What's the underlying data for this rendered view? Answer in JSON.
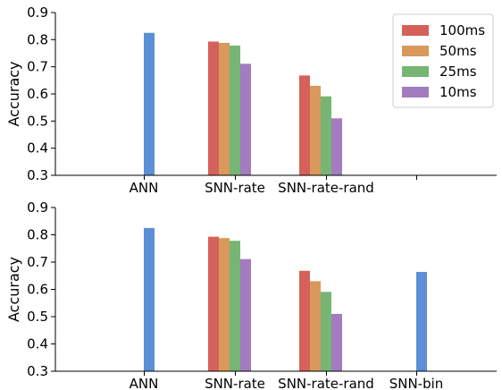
{
  "chart_data": [
    {
      "type": "bar",
      "title": "",
      "xlabel": "",
      "ylabel": "Accuracy",
      "ylim": [
        0.3,
        0.9
      ],
      "yticks": [
        "0.3",
        "0.4",
        "0.5",
        "0.6",
        "0.7",
        "0.8",
        "0.9"
      ],
      "categories": [
        "ANN",
        "SNN-rate",
        "SNN-rate-rand"
      ],
      "legend": {
        "placement": "top-right"
      },
      "series": [
        {
          "name": "ANN",
          "color": "#5b8fd6",
          "values": [
            0.825,
            null,
            null
          ]
        },
        {
          "name": "100ms",
          "color": "#d5625a",
          "values": [
            null,
            0.793,
            0.668
          ]
        },
        {
          "name": "50ms",
          "color": "#d9995a",
          "values": [
            null,
            0.788,
            0.63
          ]
        },
        {
          "name": "25ms",
          "color": "#76b573",
          "values": [
            null,
            0.778,
            0.591
          ]
        },
        {
          "name": "10ms",
          "color": "#a27cbf",
          "values": [
            null,
            0.711,
            0.51
          ]
        }
      ]
    },
    {
      "type": "bar",
      "title": "",
      "xlabel": "",
      "ylabel": "Accuracy",
      "ylim": [
        0.3,
        0.9
      ],
      "yticks": [
        "0.3",
        "0.4",
        "0.5",
        "0.6",
        "0.7",
        "0.8",
        "0.9"
      ],
      "categories": [
        "ANN",
        "SNN-rate",
        "SNN-rate-rand",
        "SNN-bin"
      ],
      "series": [
        {
          "name": "ANN",
          "color": "#5b8fd6",
          "values": [
            0.825,
            null,
            null,
            0.664
          ]
        },
        {
          "name": "100ms",
          "color": "#d5625a",
          "values": [
            null,
            0.793,
            0.668,
            null
          ]
        },
        {
          "name": "50ms",
          "color": "#d9995a",
          "values": [
            null,
            0.788,
            0.63,
            null
          ]
        },
        {
          "name": "25ms",
          "color": "#76b573",
          "values": [
            null,
            0.778,
            0.591,
            null
          ]
        },
        {
          "name": "10ms",
          "color": "#a27cbf",
          "values": [
            null,
            0.711,
            0.51,
            null
          ]
        }
      ]
    }
  ]
}
